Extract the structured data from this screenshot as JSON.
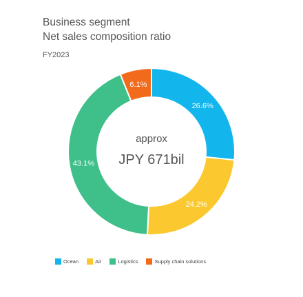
{
  "header": {
    "title_line1": "Business segment",
    "title_line2": "Net sales composition ratio",
    "period": "FY2023"
  },
  "center": {
    "line1": "approx",
    "line2": "JPY 671bil"
  },
  "chart_data": {
    "type": "pie",
    "donut": true,
    "title": "Business segment Net sales composition ratio",
    "subtitle": "FY2023",
    "center_text": [
      "approx",
      "JPY 671bil"
    ],
    "legend_position": "bottom",
    "slices": [
      {
        "name": "Ocean",
        "value": 26.6,
        "label": "26.6%",
        "color": "#12b6ec"
      },
      {
        "name": "Air",
        "value": 24.2,
        "label": "24.2%",
        "color": "#fbc82f"
      },
      {
        "name": "Logistics",
        "value": 43.1,
        "label": "43.1%",
        "color": "#3fbf8a"
      },
      {
        "name": "Supply chain solutions",
        "value": 6.1,
        "label": "6.1%",
        "color": "#f26b1d"
      }
    ]
  }
}
